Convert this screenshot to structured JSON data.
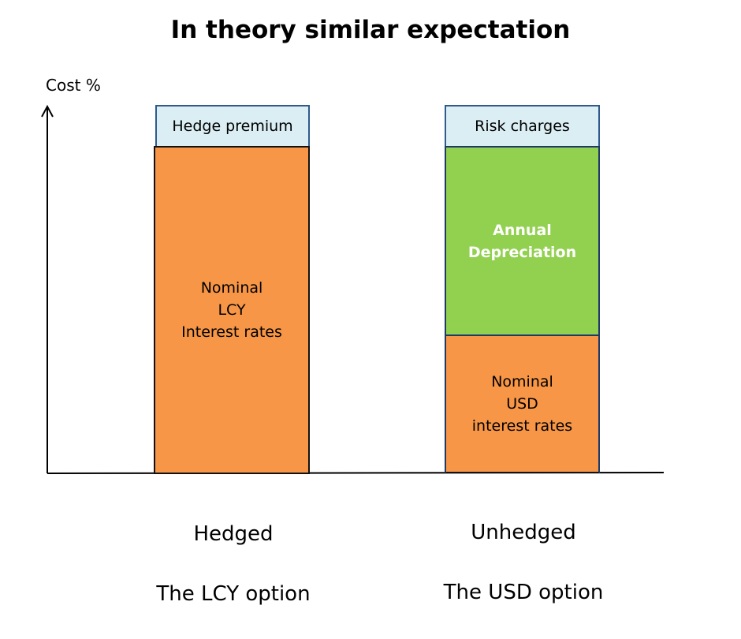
{
  "title": "In theory similar expectation",
  "y_axis_label": "Cost %",
  "colors": {
    "premium": "#dbeef4",
    "orange": "#f79646",
    "green": "#92d050"
  },
  "bars": [
    {
      "label_line1": "Hedged",
      "label_line2": "The LCY option",
      "segments": [
        {
          "label": "Hedge premium"
        },
        {
          "label": "Nominal\nLCY\nInterest rates"
        }
      ]
    },
    {
      "label_line1": "Unhedged",
      "label_line2": "The USD option",
      "segments": [
        {
          "label": "Risk charges"
        },
        {
          "label": "Annual\nDepreciation"
        },
        {
          "label": "Nominal\nUSD\ninterest rates"
        }
      ]
    }
  ]
}
